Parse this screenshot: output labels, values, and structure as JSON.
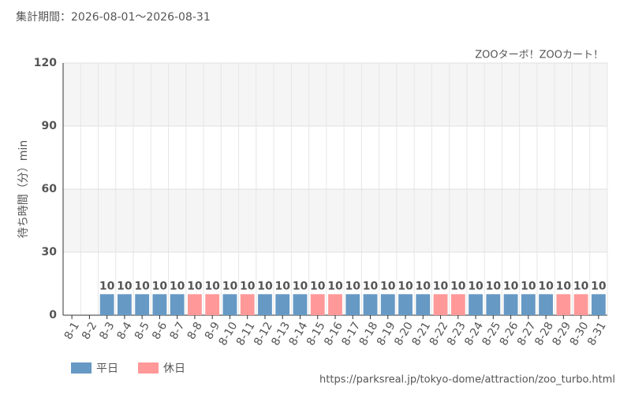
{
  "chart_data": {
    "type": "bar",
    "title": "集計期間：2026-08-01～2026-08-31",
    "subtitle": "ZOOターボ！ZOOカート！",
    "y_label": "待ち時間（分）min",
    "source": "https://parksreal.jp/tokyo-dome/attraction/zoo_turbo.html",
    "categories": [
      "8-1",
      "8-2",
      "8-3",
      "8-4",
      "8-5",
      "8-6",
      "8-7",
      "8-8",
      "8-9",
      "8-10",
      "8-11",
      "8-12",
      "8-13",
      "8-14",
      "8-15",
      "8-16",
      "8-17",
      "8-18",
      "8-19",
      "8-20",
      "8-21",
      "8-22",
      "8-23",
      "8-24",
      "8-25",
      "8-26",
      "8-27",
      "8-28",
      "8-29",
      "8-30",
      "8-31"
    ],
    "category_colors": [
      "#f08080",
      "#f08080",
      "#444",
      "#444",
      "#444",
      "#444",
      "#444",
      "#f08080",
      "#f08080",
      "#444",
      "#f08080",
      "#444",
      "#444",
      "#444",
      "#f08080",
      "#f08080",
      "#444",
      "#444",
      "#444",
      "#444",
      "#444",
      "#f08080",
      "#f08080",
      "#444",
      "#444",
      "#444",
      "#444",
      "#444",
      "#f08080",
      "#f08080",
      "#444"
    ],
    "series": [
      {
        "name": "平日",
        "color": "#6699c4",
        "label_color": "#4a7fb0",
        "values": [
          null,
          null,
          10,
          10,
          10,
          10,
          10,
          null,
          null,
          10,
          null,
          10,
          10,
          10,
          null,
          null,
          10,
          10,
          10,
          10,
          10,
          null,
          null,
          10,
          10,
          10,
          10,
          10,
          null,
          null,
          10
        ]
      },
      {
        "name": "休日",
        "color": "#ff9999",
        "label_color": "#f08080",
        "values": [
          null,
          null,
          null,
          null,
          null,
          null,
          null,
          10,
          10,
          null,
          10,
          null,
          null,
          null,
          10,
          10,
          null,
          null,
          null,
          null,
          null,
          10,
          10,
          null,
          null,
          null,
          null,
          null,
          10,
          10,
          null
        ]
      }
    ],
    "ylim": [
      0,
      120
    ],
    "yticks": [
      0,
      30,
      60,
      90,
      120
    ],
    "grid": true
  }
}
